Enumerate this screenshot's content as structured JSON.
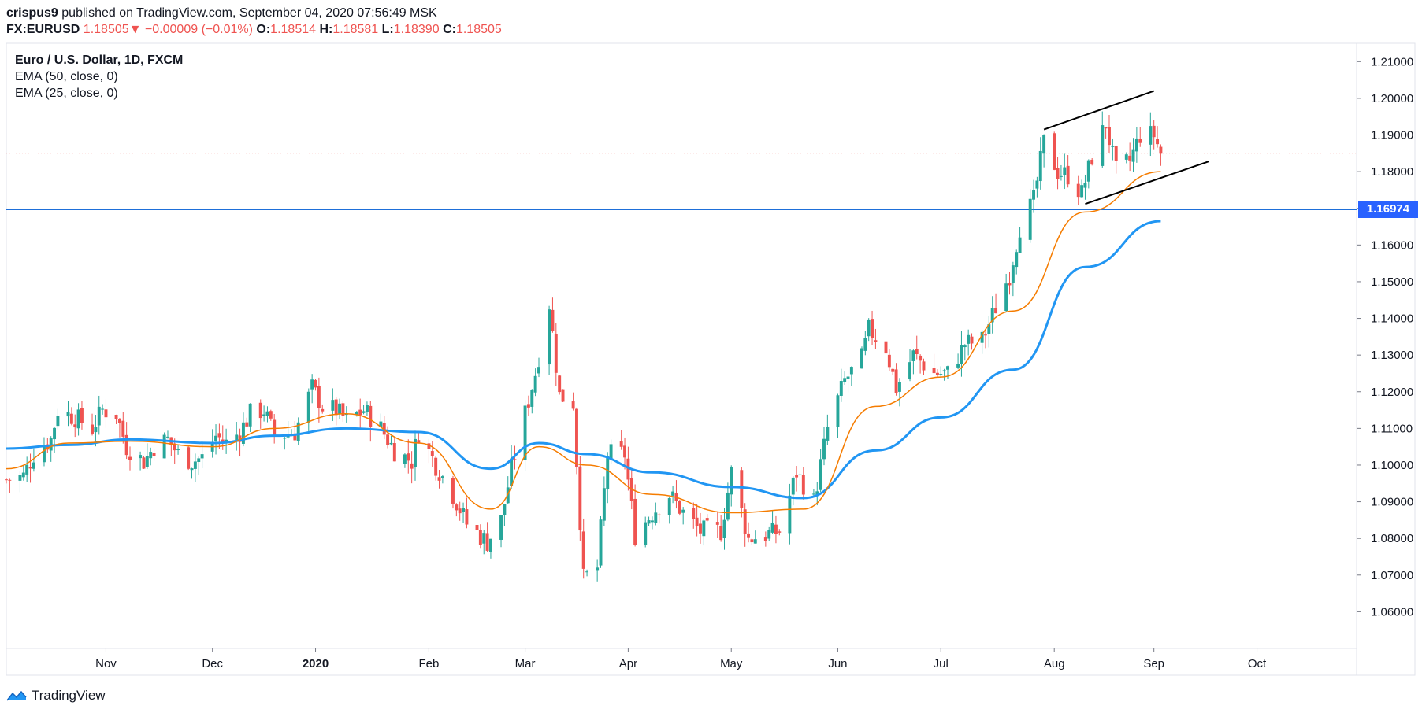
{
  "header": {
    "author": "crispus9",
    "published_text": "published on TradingView.com, September 04, 2020 07:56:49 MSK",
    "symbol": "FX:EURUSD",
    "last": "1.18505",
    "change_arrow": "▼",
    "change": "−0.00009 (−0.01%)",
    "o_label": "O:",
    "o_value": "1.18514",
    "h_label": "H:",
    "h_value": "1.18581",
    "l_label": "L:",
    "l_value": "1.18390",
    "c_label": "C:",
    "c_value": "1.18505"
  },
  "legend": {
    "title": "Euro / U.S. Dollar, 1D, FXCM",
    "ema50": "EMA (50, close, 0)",
    "ema25": "EMA (25, close, 0)"
  },
  "brand": {
    "name": "TradingView",
    "icon": "tradingview-logo-icon"
  },
  "colors": {
    "up": "#26a69a",
    "down": "#ef5350",
    "ema50": "#2196f3",
    "ema25": "#f57c00",
    "hline": "#1e6fd9",
    "tag": "#2962ff",
    "channel": "#000000"
  },
  "chart_data": {
    "type": "candlestick",
    "ylim": [
      1.05,
      1.215
    ],
    "y_ticks": [
      "1.06000",
      "1.07000",
      "1.08000",
      "1.09000",
      "1.10000",
      "1.11000",
      "1.12000",
      "1.13000",
      "1.14000",
      "1.15000",
      "1.16000",
      "1.17000",
      "1.18000",
      "1.19000",
      "1.20000",
      "1.21000"
    ],
    "x_ticks": [
      {
        "label": "Nov",
        "date": "2019-11-01",
        "bold": false
      },
      {
        "label": "Dec",
        "date": "2019-12-02",
        "bold": false
      },
      {
        "label": "2020",
        "date": "2020-01-01",
        "bold": true
      },
      {
        "label": "Feb",
        "date": "2020-02-03",
        "bold": false
      },
      {
        "label": "Mar",
        "date": "2020-03-02",
        "bold": false
      },
      {
        "label": "Apr",
        "date": "2020-04-01",
        "bold": false
      },
      {
        "label": "May",
        "date": "2020-05-01",
        "bold": false
      },
      {
        "label": "Jun",
        "date": "2020-06-01",
        "bold": false
      },
      {
        "label": "Jul",
        "date": "2020-07-01",
        "bold": false
      },
      {
        "label": "Aug",
        "date": "2020-08-03",
        "bold": false
      },
      {
        "label": "Sep",
        "date": "2020-09-01",
        "bold": false
      },
      {
        "label": "Oct",
        "date": "2020-10-01",
        "bold": false
      }
    ],
    "x_start_date": "2019-10-03",
    "x_end_date": "2020-10-30",
    "horizontal_line": {
      "value": 1.16974,
      "label": "1.16974"
    },
    "last_price": 1.18505,
    "channel_lines": [
      {
        "from": {
          "date": "2020-07-31",
          "value": 1.1915
        },
        "to": {
          "date": "2020-09-01",
          "value": 1.202
        }
      },
      {
        "from": {
          "date": "2020-08-12",
          "value": 1.1712
        },
        "to": {
          "date": "2020-09-17",
          "value": 1.1828
        }
      }
    ],
    "close_path": [
      [
        "2019-10-03",
        1.096
      ],
      [
        "2019-10-08",
        1.097
      ],
      [
        "2019-10-11",
        1.103
      ],
      [
        "2019-10-16",
        1.107
      ],
      [
        "2019-10-18",
        1.115
      ],
      [
        "2019-10-23",
        1.113
      ],
      [
        "2019-10-28",
        1.11
      ],
      [
        "2019-10-31",
        1.115
      ],
      [
        "2019-11-04",
        1.114
      ],
      [
        "2019-11-07",
        1.105
      ],
      [
        "2019-11-12",
        1.101
      ],
      [
        "2019-11-15",
        1.105
      ],
      [
        "2019-11-19",
        1.107
      ],
      [
        "2019-11-22",
        1.103
      ],
      [
        "2019-11-26",
        1.101
      ],
      [
        "2019-11-29",
        1.102
      ],
      [
        "2019-12-03",
        1.108
      ],
      [
        "2019-12-06",
        1.106
      ],
      [
        "2019-12-10",
        1.109
      ],
      [
        "2019-12-13",
        1.114
      ],
      [
        "2019-12-17",
        1.115
      ],
      [
        "2019-12-20",
        1.108
      ],
      [
        "2019-12-26",
        1.109
      ],
      [
        "2019-12-31",
        1.121
      ],
      [
        "2020-01-03",
        1.116
      ],
      [
        "2020-01-07",
        1.115
      ],
      [
        "2020-01-10",
        1.112
      ],
      [
        "2020-01-15",
        1.115
      ],
      [
        "2020-01-20",
        1.11
      ],
      [
        "2020-01-24",
        1.104
      ],
      [
        "2020-01-29",
        1.101
      ],
      [
        "2020-01-31",
        1.109
      ],
      [
        "2020-02-05",
        1.1
      ],
      [
        "2020-02-10",
        1.092
      ],
      [
        "2020-02-14",
        1.084
      ],
      [
        "2020-02-20",
        1.079
      ],
      [
        "2020-02-24",
        1.085
      ],
      [
        "2020-02-27",
        1.099
      ],
      [
        "2020-03-02",
        1.114
      ],
      [
        "2020-03-05",
        1.125
      ],
      [
        "2020-03-09",
        1.144
      ],
      [
        "2020-03-12",
        1.119
      ],
      [
        "2020-03-16",
        1.117
      ],
      [
        "2020-03-19",
        1.069
      ],
      [
        "2020-03-23",
        1.072
      ],
      [
        "2020-03-26",
        1.103
      ],
      [
        "2020-03-31",
        1.103
      ],
      [
        "2020-04-03",
        1.081
      ],
      [
        "2020-04-08",
        1.087
      ],
      [
        "2020-04-13",
        1.092
      ],
      [
        "2020-04-17",
        1.087
      ],
      [
        "2020-04-22",
        1.082
      ],
      [
        "2020-04-28",
        1.082
      ],
      [
        "2020-05-01",
        1.098
      ],
      [
        "2020-05-06",
        1.08
      ],
      [
        "2020-05-11",
        1.081
      ],
      [
        "2020-05-15",
        1.082
      ],
      [
        "2020-05-20",
        1.098
      ],
      [
        "2020-05-25",
        1.09
      ],
      [
        "2020-05-29",
        1.11
      ],
      [
        "2020-06-03",
        1.123
      ],
      [
        "2020-06-08",
        1.129
      ],
      [
        "2020-06-10",
        1.137
      ],
      [
        "2020-06-15",
        1.132
      ],
      [
        "2020-06-18",
        1.121
      ],
      [
        "2020-06-23",
        1.13
      ],
      [
        "2020-06-29",
        1.125
      ],
      [
        "2020-07-03",
        1.125
      ],
      [
        "2020-07-08",
        1.133
      ],
      [
        "2020-07-13",
        1.134
      ],
      [
        "2020-07-17",
        1.143
      ],
      [
        "2020-07-21",
        1.152
      ],
      [
        "2020-07-24",
        1.165
      ],
      [
        "2020-07-28",
        1.172
      ],
      [
        "2020-07-31",
        1.188
      ],
      [
        "2020-08-04",
        1.18
      ],
      [
        "2020-08-07",
        1.179
      ],
      [
        "2020-08-11",
        1.174
      ],
      [
        "2020-08-14",
        1.184
      ],
      [
        "2020-08-18",
        1.193
      ],
      [
        "2020-08-21",
        1.18
      ],
      [
        "2020-08-25",
        1.183
      ],
      [
        "2020-08-28",
        1.19
      ],
      [
        "2020-09-01",
        1.19
      ],
      [
        "2020-09-03",
        1.185
      ]
    ],
    "ema50_path": [
      [
        "2019-10-03",
        1.1045
      ],
      [
        "2019-10-21",
        1.1055
      ],
      [
        "2019-11-08",
        1.107
      ],
      [
        "2019-12-02",
        1.106
      ],
      [
        "2019-12-20",
        1.108
      ],
      [
        "2020-01-10",
        1.11
      ],
      [
        "2020-01-31",
        1.109
      ],
      [
        "2020-02-21",
        1.099
      ],
      [
        "2020-03-06",
        1.106
      ],
      [
        "2020-03-20",
        1.103
      ],
      [
        "2020-04-08",
        1.098
      ],
      [
        "2020-05-01",
        1.094
      ],
      [
        "2020-05-22",
        1.091
      ],
      [
        "2020-06-12",
        1.104
      ],
      [
        "2020-07-01",
        1.113
      ],
      [
        "2020-07-22",
        1.126
      ],
      [
        "2020-08-12",
        1.154
      ],
      [
        "2020-09-03",
        1.1665
      ]
    ],
    "ema25_path": [
      [
        "2019-10-03",
        1.099
      ],
      [
        "2019-10-21",
        1.106
      ],
      [
        "2019-11-08",
        1.1065
      ],
      [
        "2019-12-02",
        1.105
      ],
      [
        "2019-12-20",
        1.11
      ],
      [
        "2020-01-10",
        1.114
      ],
      [
        "2020-01-31",
        1.106
      ],
      [
        "2020-02-21",
        1.088
      ],
      [
        "2020-03-06",
        1.105
      ],
      [
        "2020-03-20",
        1.1
      ],
      [
        "2020-04-08",
        1.092
      ],
      [
        "2020-05-01",
        1.087
      ],
      [
        "2020-05-22",
        1.088
      ],
      [
        "2020-06-12",
        1.116
      ],
      [
        "2020-07-01",
        1.124
      ],
      [
        "2020-07-22",
        1.142
      ],
      [
        "2020-08-12",
        1.169
      ],
      [
        "2020-09-03",
        1.18
      ]
    ]
  }
}
